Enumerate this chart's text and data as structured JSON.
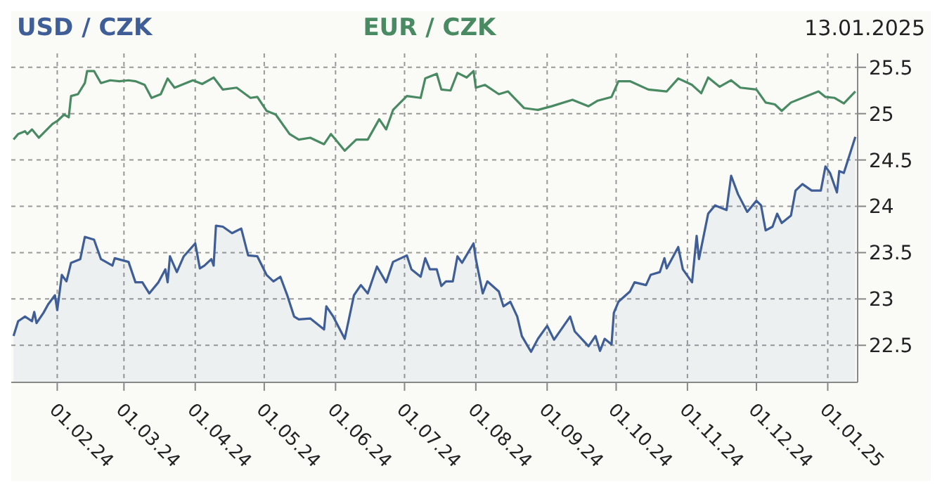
{
  "chart_data": {
    "type": "line",
    "annotations": [
      "13.01.2025"
    ],
    "legend": "top",
    "grid": true,
    "ylim": [
      22.1,
      25.65
    ],
    "yticks": [
      22.5,
      23,
      23.5,
      24,
      24.5,
      25,
      25.5
    ],
    "xlim": [
      "2024-01-12",
      "2025-01-14"
    ],
    "xticks": [
      {
        "value": "2024-02-01",
        "label": "01.02.24"
      },
      {
        "value": "2024-03-01",
        "label": "01.03.24"
      },
      {
        "value": "2024-04-01",
        "label": "01.04.24"
      },
      {
        "value": "2024-05-01",
        "label": "01.05.24"
      },
      {
        "value": "2024-06-01",
        "label": "01.06.24"
      },
      {
        "value": "2024-07-01",
        "label": "01.07.24"
      },
      {
        "value": "2024-08-01",
        "label": "01.08.24"
      },
      {
        "value": "2024-09-01",
        "label": "01.09.24"
      },
      {
        "value": "2024-10-01",
        "label": "01.10.24"
      },
      {
        "value": "2024-11-01",
        "label": "01.11.24"
      },
      {
        "value": "2024-12-01",
        "label": "01.12.24"
      },
      {
        "value": "2025-01-01",
        "label": "01.01.25"
      }
    ],
    "series": [
      {
        "name": "USD / CZK",
        "type": "area",
        "color": "#3f5e97",
        "x": [
          "2024-01-13",
          "2024-01-15",
          "2024-01-18",
          "2024-01-21",
          "2024-01-22",
          "2024-01-23",
          "2024-01-26",
          "2024-01-28",
          "2024-01-31",
          "2024-02-01",
          "2024-02-03",
          "2024-02-05",
          "2024-02-07",
          "2024-02-11",
          "2024-02-13",
          "2024-02-17",
          "2024-02-20",
          "2024-02-25",
          "2024-02-26",
          "2024-03-03",
          "2024-03-06",
          "2024-03-09",
          "2024-03-12",
          "2024-03-16",
          "2024-03-19",
          "2024-03-20",
          "2024-03-21",
          "2024-03-24",
          "2024-03-27",
          "2024-04-01",
          "2024-04-03",
          "2024-04-05",
          "2024-04-08",
          "2024-04-09",
          "2024-04-10",
          "2024-04-13",
          "2024-04-17",
          "2024-04-21",
          "2024-04-24",
          "2024-04-28",
          "2024-05-02",
          "2024-05-05",
          "2024-05-08",
          "2024-05-11",
          "2024-05-14",
          "2024-05-16",
          "2024-05-21",
          "2024-05-27",
          "2024-05-28",
          "2024-05-31",
          "2024-06-05",
          "2024-06-09",
          "2024-06-12",
          "2024-06-15",
          "2024-06-19",
          "2024-06-23",
          "2024-06-26",
          "2024-07-02",
          "2024-07-04",
          "2024-07-08",
          "2024-07-10",
          "2024-07-12",
          "2024-07-15",
          "2024-07-17",
          "2024-07-19",
          "2024-07-22",
          "2024-07-24",
          "2024-07-26",
          "2024-07-31",
          "2024-08-01",
          "2024-08-04",
          "2024-08-06",
          "2024-08-11",
          "2024-08-13",
          "2024-08-16",
          "2024-08-19",
          "2024-08-21",
          "2024-08-25",
          "2024-08-28",
          "2024-09-01",
          "2024-09-04",
          "2024-09-11",
          "2024-09-13",
          "2024-09-19",
          "2024-09-22",
          "2024-09-24",
          "2024-09-26",
          "2024-09-29",
          "2024-09-30",
          "2024-10-02",
          "2024-10-07",
          "2024-10-09",
          "2024-10-14",
          "2024-10-16",
          "2024-10-20",
          "2024-10-22",
          "2024-10-23",
          "2024-10-28",
          "2024-10-30",
          "2024-11-03",
          "2024-11-05",
          "2024-11-06",
          "2024-11-10",
          "2024-11-13",
          "2024-11-17",
          "2024-11-18",
          "2024-11-20",
          "2024-11-23",
          "2024-11-27",
          "2024-12-01",
          "2024-12-03",
          "2024-12-05",
          "2024-12-08",
          "2024-12-10",
          "2024-12-12",
          "2024-12-16",
          "2024-12-18",
          "2024-12-21",
          "2024-12-25",
          "2024-12-29",
          "2024-12-31",
          "2025-01-02",
          "2025-01-05",
          "2025-01-06",
          "2025-01-08",
          "2025-01-13"
        ],
        "values": [
          22.6,
          22.76,
          22.81,
          22.76,
          22.86,
          22.74,
          22.85,
          22.94,
          23.04,
          22.88,
          23.26,
          23.19,
          23.39,
          23.43,
          23.67,
          23.64,
          23.43,
          23.36,
          23.44,
          23.4,
          23.18,
          23.18,
          23.06,
          23.18,
          23.32,
          23.18,
          23.46,
          23.29,
          23.46,
          23.6,
          23.33,
          23.36,
          23.43,
          23.36,
          23.79,
          23.78,
          23.71,
          23.76,
          23.47,
          23.46,
          23.26,
          23.19,
          23.24,
          23.04,
          22.81,
          22.78,
          22.79,
          22.67,
          22.92,
          22.81,
          22.57,
          23.04,
          23.15,
          23.06,
          23.35,
          23.18,
          23.4,
          23.47,
          23.32,
          23.24,
          23.44,
          23.32,
          23.32,
          23.14,
          23.19,
          23.19,
          23.46,
          23.39,
          23.6,
          23.43,
          23.06,
          23.19,
          23.08,
          22.92,
          22.97,
          22.81,
          22.6,
          22.43,
          22.57,
          22.71,
          22.56,
          22.81,
          22.65,
          22.49,
          22.6,
          22.44,
          22.57,
          22.51,
          22.85,
          22.97,
          23.08,
          23.18,
          23.15,
          23.26,
          23.29,
          23.44,
          23.33,
          23.56,
          23.32,
          23.18,
          23.68,
          23.43,
          23.92,
          24.01,
          23.97,
          23.96,
          24.33,
          24.13,
          23.94,
          24.06,
          24.01,
          23.74,
          23.78,
          23.92,
          23.82,
          23.9,
          24.17,
          24.24,
          24.17,
          24.17,
          24.43,
          24.36,
          24.15,
          24.38,
          24.36,
          24.75
        ]
      },
      {
        "name": "EUR / CZK",
        "color": "#4a8a63",
        "x": [
          "2024-01-13",
          "2024-01-15",
          "2024-01-18",
          "2024-01-19",
          "2024-01-21",
          "2024-01-24",
          "2024-01-30",
          "2024-02-01",
          "2024-02-04",
          "2024-02-06",
          "2024-02-07",
          "2024-02-10",
          "2024-02-13",
          "2024-02-14",
          "2024-02-17",
          "2024-02-20",
          "2024-02-24",
          "2024-02-28",
          "2024-03-03",
          "2024-03-06",
          "2024-03-10",
          "2024-03-13",
          "2024-03-17",
          "2024-03-20",
          "2024-03-23",
          "2024-03-27",
          "2024-03-31",
          "2024-04-04",
          "2024-04-09",
          "2024-04-13",
          "2024-04-19",
          "2024-04-25",
          "2024-04-28",
          "2024-05-02",
          "2024-05-06",
          "2024-05-12",
          "2024-05-16",
          "2024-05-21",
          "2024-05-27",
          "2024-05-30",
          "2024-06-01",
          "2024-06-05",
          "2024-06-10",
          "2024-06-15",
          "2024-06-20",
          "2024-06-23",
          "2024-06-26",
          "2024-07-02",
          "2024-07-08",
          "2024-07-10",
          "2024-07-15",
          "2024-07-17",
          "2024-07-21",
          "2024-07-24",
          "2024-07-28",
          "2024-07-31",
          "2024-08-01",
          "2024-08-05",
          "2024-08-11",
          "2024-08-15",
          "2024-08-22",
          "2024-08-28",
          "2024-09-03",
          "2024-09-12",
          "2024-09-19",
          "2024-09-23",
          "2024-09-29",
          "2024-10-02",
          "2024-10-07",
          "2024-10-15",
          "2024-10-23",
          "2024-10-28",
          "2024-11-03",
          "2024-11-07",
          "2024-11-10",
          "2024-11-15",
          "2024-11-20",
          "2024-11-24",
          "2024-12-01",
          "2024-12-05",
          "2024-12-09",
          "2024-12-12",
          "2024-12-16",
          "2024-12-28",
          "2024-12-31",
          "2025-01-04",
          "2025-01-08",
          "2025-01-13"
        ],
        "values": [
          24.72,
          24.78,
          24.81,
          24.78,
          24.83,
          24.74,
          24.89,
          24.92,
          24.99,
          24.96,
          25.19,
          25.21,
          25.33,
          25.46,
          25.46,
          25.33,
          25.36,
          25.35,
          25.36,
          25.35,
          25.31,
          25.17,
          25.21,
          25.38,
          25.28,
          25.32,
          25.36,
          25.32,
          25.39,
          25.26,
          25.28,
          25.17,
          25.18,
          25.03,
          24.99,
          24.78,
          24.72,
          24.74,
          24.67,
          24.78,
          24.72,
          24.6,
          24.72,
          24.72,
          24.94,
          24.83,
          25.04,
          25.19,
          25.17,
          25.38,
          25.43,
          25.26,
          25.25,
          25.44,
          25.39,
          25.46,
          25.28,
          25.31,
          25.21,
          25.24,
          25.06,
          25.04,
          25.08,
          25.15,
          25.08,
          25.14,
          25.18,
          25.35,
          25.35,
          25.26,
          25.24,
          25.38,
          25.31,
          25.22,
          25.39,
          25.29,
          25.36,
          25.28,
          25.26,
          25.12,
          25.1,
          25.03,
          25.12,
          25.24,
          25.18,
          25.17,
          25.11,
          25.24
        ]
      }
    ]
  }
}
